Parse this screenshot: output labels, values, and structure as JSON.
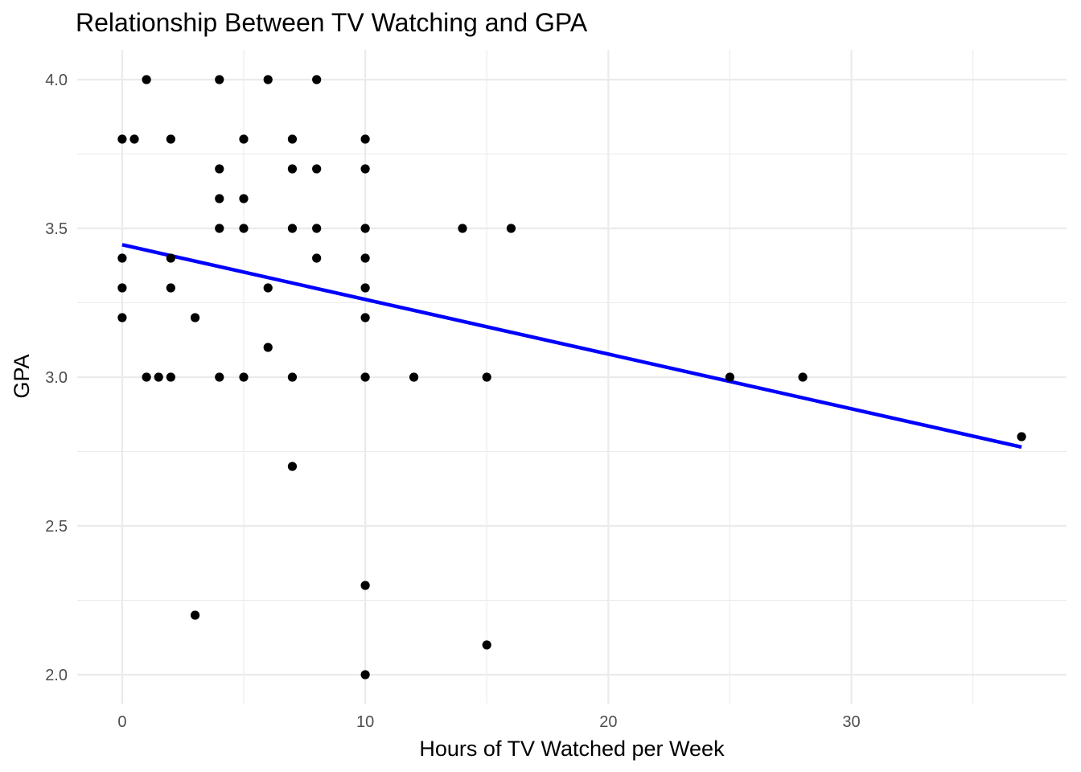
{
  "chart_data": {
    "type": "scatter",
    "title": "Relationship Between TV Watching and GPA",
    "xlabel": "Hours of TV Watched per Week",
    "ylabel": "GPA",
    "xlim": [
      -1.85,
      38.85
    ],
    "ylim": [
      1.9,
      4.1
    ],
    "x_major_ticks": [
      0,
      10,
      20,
      30
    ],
    "x_minor_ticks": [
      5,
      15,
      25,
      35
    ],
    "y_major_ticks": [
      2.0,
      2.5,
      3.0,
      3.5,
      4.0
    ],
    "y_minor_ticks": [
      2.25,
      2.75,
      3.25,
      3.75
    ],
    "x_tick_labels": [
      "0",
      "10",
      "20",
      "30"
    ],
    "y_tick_labels": [
      "2.0",
      "2.5",
      "3.0",
      "3.5",
      "4.0"
    ],
    "grid": true,
    "legend": "none",
    "point_color": "#000000",
    "points": [
      {
        "x": 0,
        "y": 3.8
      },
      {
        "x": 0.5,
        "y": 3.8
      },
      {
        "x": 2,
        "y": 3.8
      },
      {
        "x": 5,
        "y": 3.8
      },
      {
        "x": 7,
        "y": 3.8
      },
      {
        "x": 10,
        "y": 3.8
      },
      {
        "x": 1,
        "y": 4.0
      },
      {
        "x": 4,
        "y": 4.0
      },
      {
        "x": 6,
        "y": 4.0
      },
      {
        "x": 8,
        "y": 4.0
      },
      {
        "x": 4,
        "y": 3.7
      },
      {
        "x": 7,
        "y": 3.7
      },
      {
        "x": 8,
        "y": 3.7
      },
      {
        "x": 10,
        "y": 3.7
      },
      {
        "x": 4,
        "y": 3.6
      },
      {
        "x": 5,
        "y": 3.6
      },
      {
        "x": 4,
        "y": 3.5
      },
      {
        "x": 5,
        "y": 3.5
      },
      {
        "x": 7,
        "y": 3.5
      },
      {
        "x": 8,
        "y": 3.5
      },
      {
        "x": 10,
        "y": 3.5
      },
      {
        "x": 14,
        "y": 3.5
      },
      {
        "x": 16,
        "y": 3.5
      },
      {
        "x": 0,
        "y": 3.4
      },
      {
        "x": 2,
        "y": 3.4
      },
      {
        "x": 8,
        "y": 3.4
      },
      {
        "x": 10,
        "y": 3.4
      },
      {
        "x": 0,
        "y": 3.3
      },
      {
        "x": 2,
        "y": 3.3
      },
      {
        "x": 6,
        "y": 3.3
      },
      {
        "x": 10,
        "y": 3.3
      },
      {
        "x": 0,
        "y": 3.2
      },
      {
        "x": 3,
        "y": 3.2
      },
      {
        "x": 10,
        "y": 3.2
      },
      {
        "x": 6,
        "y": 3.1
      },
      {
        "x": 1,
        "y": 3.0
      },
      {
        "x": 1.5,
        "y": 3.0
      },
      {
        "x": 2,
        "y": 3.0
      },
      {
        "x": 4,
        "y": 3.0
      },
      {
        "x": 5,
        "y": 3.0
      },
      {
        "x": 7,
        "y": 3.0
      },
      {
        "x": 10,
        "y": 3.0
      },
      {
        "x": 12,
        "y": 3.0
      },
      {
        "x": 15,
        "y": 3.0
      },
      {
        "x": 25,
        "y": 3.0
      },
      {
        "x": 28,
        "y": 3.0
      },
      {
        "x": 37,
        "y": 2.8
      },
      {
        "x": 7,
        "y": 2.7
      },
      {
        "x": 10,
        "y": 2.3
      },
      {
        "x": 3,
        "y": 2.2
      },
      {
        "x": 15,
        "y": 2.1
      },
      {
        "x": 10,
        "y": 2.0
      }
    ],
    "fit_line": {
      "color": "#0000ff",
      "x": [
        0,
        37
      ],
      "y": [
        3.445,
        2.765
      ]
    }
  }
}
